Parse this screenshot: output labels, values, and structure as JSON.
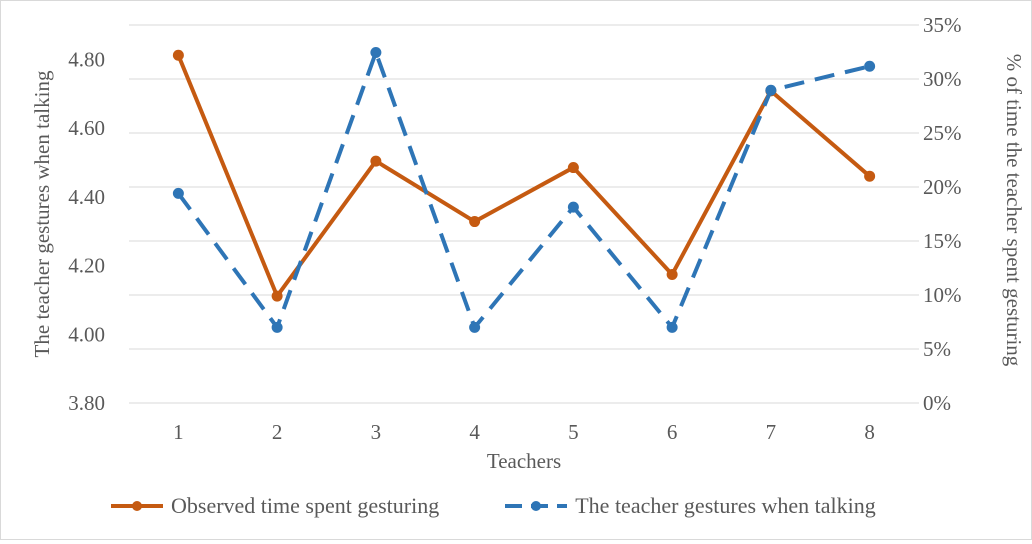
{
  "chart_data": {
    "type": "line",
    "xlabel": "Teachers",
    "ylabel_left": "The teacher gestures when talking",
    "ylabel_right": "% of time the teacher spent gesturing",
    "categories": [
      "1",
      "2",
      "3",
      "4",
      "5",
      "6",
      "7",
      "8"
    ],
    "left_axis": {
      "min": 3.8,
      "max": 4.9,
      "step": 0.2,
      "ticks": [
        "3.80",
        "4.00",
        "4.20",
        "4.40",
        "4.60",
        "4.80"
      ]
    },
    "right_axis": {
      "min": 0,
      "max": 35,
      "step": 5,
      "ticks": [
        "0%",
        "5%",
        "10%",
        "15%",
        "20%",
        "25%",
        "30%",
        "35%"
      ]
    },
    "grid": true,
    "legend_position": "bottom",
    "series": [
      {
        "name": "Observed time spent gesturing",
        "axis": "right",
        "values": [
          32.2,
          9.9,
          22.4,
          16.8,
          21.8,
          11.9,
          28.9,
          21.0
        ],
        "color": "#C55A11",
        "style": "solid"
      },
      {
        "name": "The teacher gestures when talking",
        "axis": "left",
        "values": [
          4.41,
          4.02,
          4.82,
          4.02,
          4.37,
          4.02,
          4.71,
          4.78
        ],
        "color": "#2E75B6",
        "style": "dashed"
      }
    ]
  }
}
